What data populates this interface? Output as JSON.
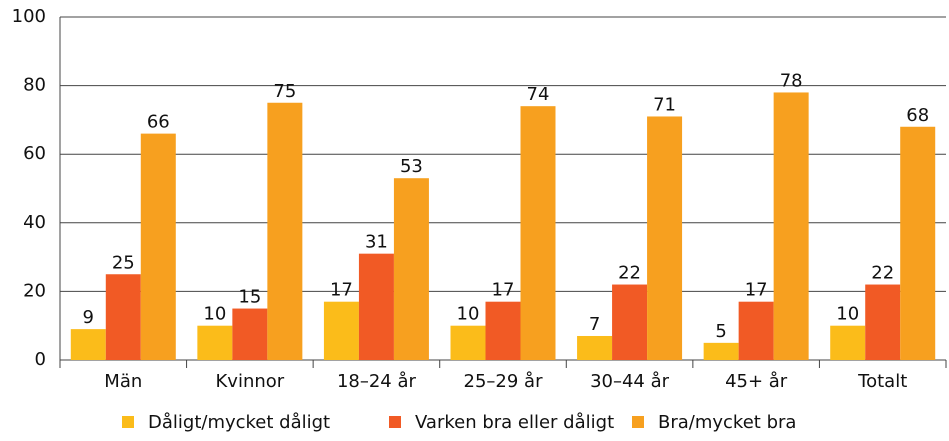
{
  "chart_data": {
    "type": "bar",
    "categories": [
      "Män",
      "Kvinnor",
      "18–24 år",
      "25–29 år",
      "30–44 år",
      "45+ år",
      "Totalt"
    ],
    "series": [
      {
        "name": "Dåligt/mycket dåligt",
        "color": "#fbbc1a",
        "values": [
          9,
          10,
          17,
          10,
          7,
          5,
          10
        ]
      },
      {
        "name": "Varken bra eller dåligt",
        "color": "#f15a25",
        "values": [
          25,
          15,
          31,
          17,
          22,
          17,
          22
        ]
      },
      {
        "name": "Bra/mycket bra",
        "color": "#f7a01f",
        "values": [
          66,
          75,
          53,
          74,
          71,
          78,
          68
        ]
      }
    ],
    "ylim": [
      0,
      100
    ],
    "yticks": [
      0,
      20,
      40,
      60,
      80,
      100
    ],
    "grid": true,
    "legend": "bottom"
  }
}
